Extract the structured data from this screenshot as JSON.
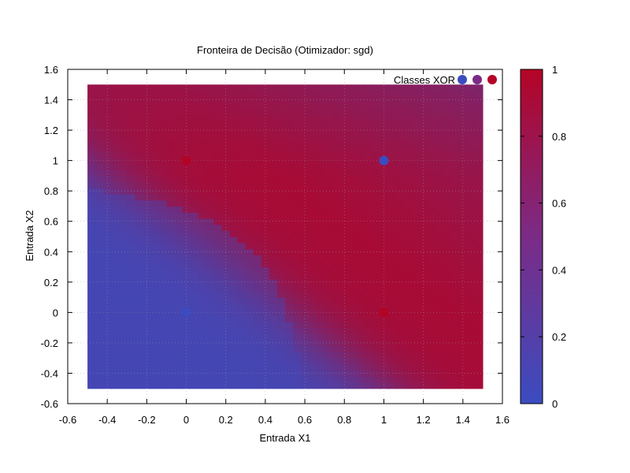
{
  "chart_data": {
    "type": "heatmap",
    "title": "Fronteira de Decisão (Otimizador: sgd)",
    "xlabel": "Entrada X1",
    "ylabel": "Entrada X2",
    "xlim": [
      -0.6,
      1.6
    ],
    "ylim": [
      -0.6,
      1.6
    ],
    "x_ticks": [
      "-0.6",
      "-0.4",
      "-0.2",
      "0",
      "0.2",
      "0.4",
      "0.6",
      "0.8",
      "1",
      "1.2",
      "1.4",
      "1.6"
    ],
    "y_ticks": [
      "-0.6",
      "-0.4",
      "-0.2",
      "0",
      "0.2",
      "0.4",
      "0.6",
      "0.8",
      "1",
      "1.2",
      "1.4",
      "1.6"
    ],
    "grid": true,
    "heatmap_region": {
      "x": [
        -0.5,
        1.5
      ],
      "y": [
        -0.5,
        1.5
      ]
    },
    "heatmap_values": {
      "description_of_corners": "value at (x1,x2)",
      "corners": [
        {
          "x1": -0.5,
          "x2": -0.5,
          "value": 0.08
        },
        {
          "x1": 1.5,
          "x2": -0.5,
          "value": 0.85
        },
        {
          "x1": -0.5,
          "x2": 1.5,
          "value": 0.72
        },
        {
          "x1": 1.5,
          "x2": 1.5,
          "value": 0.48
        }
      ]
    },
    "points": [
      {
        "x": 0,
        "y": 0,
        "class": 0
      },
      {
        "x": 0,
        "y": 1,
        "class": 1
      },
      {
        "x": 1,
        "y": 0,
        "class": 1
      },
      {
        "x": 1,
        "y": 1,
        "class": 0
      }
    ],
    "legend": {
      "label": "Classes XOR",
      "placement": "top-right"
    },
    "colorbar": {
      "range": [
        0,
        1
      ],
      "ticks": [
        "0",
        "0.2",
        "0.4",
        "0.6",
        "0.8",
        "1"
      ],
      "color_low": "#3b4cc0",
      "color_high": "#b40426"
    }
  }
}
